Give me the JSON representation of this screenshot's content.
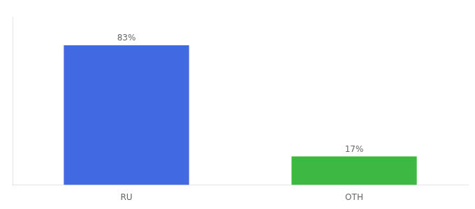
{
  "chart_data": {
    "type": "bar",
    "categories": [
      "RU",
      "OTH"
    ],
    "values": [
      83,
      17
    ],
    "value_labels": [
      "83%",
      "17%"
    ],
    "colors": [
      "#4169e1",
      "#3cb843"
    ],
    "ylim": [
      0,
      100
    ],
    "data_labels": true,
    "tick_labels": "x",
    "grid": false
  }
}
